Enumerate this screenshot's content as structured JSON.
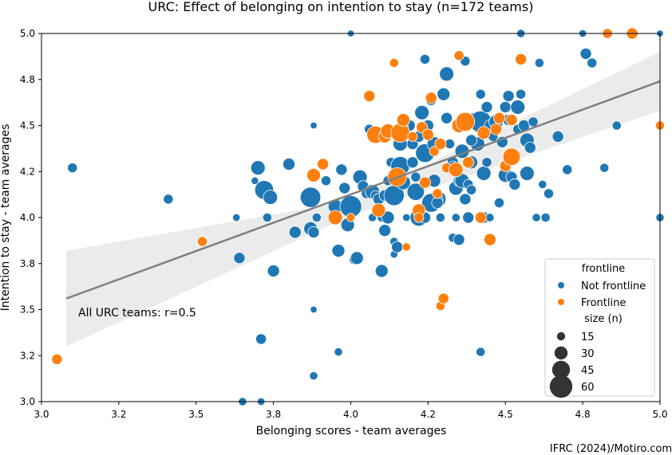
{
  "chart_data": {
    "type": "scatter",
    "title": "URC: Effect of belonging on intention to stay (n=172 teams)",
    "xlabel": "Belonging scores - team averages",
    "ylabel": "Intention to stay - team averages",
    "xlim": [
      3.0,
      5.0
    ],
    "ylim": [
      3.0,
      5.0
    ],
    "x_ticks": [
      "3.0",
      "3.2",
      "3.5",
      "3.8",
      "4.0",
      "4.2",
      "4.5",
      "4.8",
      "5.0"
    ],
    "y_ticks": [
      "3.0",
      "3.2",
      "3.5",
      "3.8",
      "4.0",
      "4.2",
      "4.5",
      "4.8",
      "5.0"
    ],
    "grid": false,
    "annotation": "All URC teams: r=0.5",
    "regression": {
      "x0": 3.08,
      "y0": 3.56,
      "x1": 5.0,
      "y1": 4.74,
      "ci_x": [
        3.08,
        4.0,
        5.0
      ],
      "ci_lo": [
        3.3,
        4.01,
        4.58
      ],
      "ci_hi": [
        3.82,
        4.09,
        4.9
      ]
    },
    "legend": {
      "placement": "lower-right",
      "hue_title": "frontline",
      "hue_entries": [
        {
          "label": "Not frontline",
          "color": "#1f77b4"
        },
        {
          "label": "Frontline",
          "color": "#ff7f0e"
        }
      ],
      "size_title": "size (n)",
      "size_entries": [
        "15",
        "30",
        "45",
        "60"
      ]
    },
    "series": [
      {
        "name": "Not frontline",
        "color": "#1f77b4",
        "points": [
          [
            3.1,
            4.27,
            8
          ],
          [
            3.41,
            4.1,
            8
          ],
          [
            3.63,
            4.0,
            5
          ],
          [
            3.64,
            3.78,
            10
          ],
          [
            3.65,
            3.0,
            6
          ],
          [
            3.69,
            4.2,
            5
          ],
          [
            3.7,
            4.27,
            14
          ],
          [
            3.71,
            3.0,
            5
          ],
          [
            3.71,
            3.34,
            9
          ],
          [
            3.72,
            4.15,
            20
          ],
          [
            3.73,
            4.0,
            7
          ],
          [
            3.74,
            4.11,
            14
          ],
          [
            3.75,
            3.71,
            11
          ],
          [
            3.8,
            4.29,
            11
          ],
          [
            3.82,
            3.92,
            11
          ],
          [
            3.86,
            4.11,
            16
          ],
          [
            3.87,
            4.11,
            22
          ],
          [
            3.87,
            3.94,
            13
          ],
          [
            3.88,
            3.92,
            10
          ],
          [
            3.89,
            4.0,
            7
          ],
          [
            3.88,
            4.5,
            4
          ],
          [
            3.88,
            3.5,
            4
          ],
          [
            3.88,
            3.14,
            6
          ],
          [
            3.92,
            4.2,
            8
          ],
          [
            3.95,
            4.06,
            14
          ],
          [
            3.96,
            3.82,
            12
          ],
          [
            3.96,
            3.27,
            6
          ],
          [
            3.97,
            4.26,
            10
          ],
          [
            3.98,
            4.16,
            10
          ],
          [
            3.99,
            3.96,
            13
          ],
          [
            4.0,
            5.0,
            4
          ],
          [
            4.0,
            4.06,
            24
          ],
          [
            4.01,
            3.77,
            7
          ],
          [
            4.02,
            3.78,
            12
          ],
          [
            4.03,
            4.22,
            14
          ],
          [
            4.04,
            4.17,
            10
          ],
          [
            4.05,
            4.13,
            8
          ],
          [
            4.07,
            4.14,
            14
          ],
          [
            4.07,
            4.0,
            6
          ],
          [
            4.08,
            4.12,
            8
          ],
          [
            4.09,
            4.1,
            10
          ],
          [
            4.1,
            4.0,
            7
          ],
          [
            4.1,
            3.71,
            12
          ],
          [
            4.11,
            3.93,
            11
          ],
          [
            4.12,
            4.0,
            12
          ],
          [
            4.11,
            4.12,
            10
          ],
          [
            4.12,
            4.2,
            8
          ],
          [
            4.13,
            4.3,
            8
          ],
          [
            4.14,
            3.87,
            6
          ],
          [
            4.14,
            3.8,
            5
          ],
          [
            4.15,
            3.84,
            10
          ],
          [
            4.14,
            4.12,
            22
          ],
          [
            4.16,
            4.28,
            20
          ],
          [
            4.16,
            4.4,
            14
          ],
          [
            4.17,
            4.19,
            14
          ],
          [
            4.18,
            4.0,
            5
          ],
          [
            4.19,
            4.5,
            10
          ],
          [
            4.2,
            4.4,
            10
          ],
          [
            4.21,
            4.22,
            8
          ],
          [
            4.21,
            4.14,
            18
          ],
          [
            4.22,
            4.0,
            18
          ],
          [
            4.22,
            4.03,
            10
          ],
          [
            4.22,
            4.44,
            10
          ],
          [
            4.23,
            4.57,
            14
          ],
          [
            4.24,
            4.0,
            10
          ],
          [
            4.24,
            4.35,
            20
          ],
          [
            4.25,
            4.5,
            10
          ],
          [
            4.26,
            4.64,
            10
          ],
          [
            4.27,
            4.4,
            14
          ],
          [
            4.27,
            4.2,
            12
          ],
          [
            4.28,
            4.1,
            18
          ],
          [
            4.28,
            4.1,
            10
          ],
          [
            4.29,
            4.0,
            7
          ],
          [
            4.3,
            4.67,
            12
          ],
          [
            4.31,
            4.78,
            14
          ],
          [
            4.31,
            4.54,
            10
          ],
          [
            4.32,
            4.4,
            8
          ],
          [
            4.33,
            4.3,
            10
          ],
          [
            4.33,
            4.28,
            8
          ],
          [
            4.34,
            4.0,
            6
          ],
          [
            4.33,
            3.89,
            7
          ],
          [
            4.34,
            4.16,
            14
          ],
          [
            4.35,
            3.88,
            10
          ],
          [
            4.35,
            4.2,
            10
          ],
          [
            4.36,
            4.36,
            14
          ],
          [
            4.36,
            4.2,
            14
          ],
          [
            4.37,
            4.85,
            8
          ],
          [
            4.37,
            4.1,
            10
          ],
          [
            4.38,
            4.0,
            10
          ],
          [
            4.38,
            4.18,
            8
          ],
          [
            4.39,
            4.3,
            12
          ],
          [
            4.39,
            4.15,
            8
          ],
          [
            4.4,
            4.54,
            10
          ],
          [
            4.41,
            4.4,
            14
          ],
          [
            4.42,
            4.52,
            24
          ],
          [
            4.42,
            4.67,
            8
          ],
          [
            4.43,
            4.24,
            14
          ],
          [
            4.43,
            4.0,
            10
          ],
          [
            4.44,
            4.3,
            8
          ],
          [
            4.44,
            4.6,
            10
          ],
          [
            4.45,
            4.5,
            10
          ],
          [
            4.45,
            4.0,
            6
          ],
          [
            4.46,
            4.44,
            8
          ],
          [
            4.47,
            4.52,
            14
          ],
          [
            4.48,
            4.08,
            8
          ],
          [
            4.49,
            4.41,
            10
          ],
          [
            4.5,
            4.6,
            10
          ],
          [
            4.5,
            4.23,
            14
          ],
          [
            4.51,
            4.66,
            10
          ],
          [
            4.51,
            4.53,
            10
          ],
          [
            4.52,
            4.22,
            10
          ],
          [
            4.53,
            4.18,
            10
          ],
          [
            4.54,
            4.6,
            14
          ],
          [
            4.54,
            4.48,
            8
          ],
          [
            4.55,
            4.67,
            8
          ],
          [
            4.56,
            4.5,
            10
          ],
          [
            4.57,
            4.42,
            14
          ],
          [
            4.57,
            4.24,
            14
          ],
          [
            4.58,
            4.38,
            10
          ],
          [
            4.59,
            4.52,
            8
          ],
          [
            4.6,
            4.0,
            6
          ],
          [
            4.61,
            4.84,
            7
          ],
          [
            4.62,
            4.18,
            6
          ],
          [
            4.63,
            4.0,
            7
          ],
          [
            4.64,
            4.13,
            8
          ],
          [
            4.67,
            4.44,
            10
          ],
          [
            4.7,
            4.26,
            8
          ],
          [
            4.75,
            5.0,
            5
          ],
          [
            4.76,
            4.89,
            10
          ],
          [
            4.78,
            4.84,
            8
          ],
          [
            4.82,
            4.27,
            7
          ],
          [
            4.86,
            4.5,
            7
          ],
          [
            4.92,
            5.0,
            4
          ],
          [
            5.0,
            4.0,
            6
          ],
          [
            5.0,
            5.0,
            4
          ],
          [
            4.55,
            5.0,
            6
          ],
          [
            4.42,
            3.27,
            7
          ],
          [
            4.24,
            4.86,
            8
          ],
          [
            4.26,
            4.08,
            20
          ],
          [
            4.39,
            4.42,
            10
          ],
          [
            4.2,
            4.3,
            10
          ],
          [
            4.06,
            4.48,
            8
          ],
          [
            4.17,
            4.49,
            8
          ],
          [
            4.28,
            4.08,
            10
          ],
          [
            4.37,
            4.52,
            14
          ]
        ]
      },
      {
        "name": "Frontline",
        "color": "#ff7f0e",
        "points": [
          [
            3.05,
            3.23,
            9
          ],
          [
            3.52,
            3.87,
            8
          ],
          [
            3.88,
            4.23,
            13
          ],
          [
            3.91,
            4.29,
            10
          ],
          [
            3.95,
            4.0,
            14
          ],
          [
            4.0,
            4.0,
            6
          ],
          [
            4.06,
            4.66,
            10
          ],
          [
            4.08,
            4.45,
            18
          ],
          [
            4.09,
            4.04,
            13
          ],
          [
            4.11,
            4.44,
            12
          ],
          [
            4.12,
            4.47,
            14
          ],
          [
            4.14,
            4.84,
            7
          ],
          [
            4.15,
            4.22,
            20
          ],
          [
            4.16,
            4.46,
            20
          ],
          [
            4.17,
            4.53,
            12
          ],
          [
            4.18,
            3.84,
            6
          ],
          [
            4.22,
            4.04,
            12
          ],
          [
            4.22,
            4.0,
            8
          ],
          [
            4.23,
            4.49,
            10
          ],
          [
            4.25,
            4.45,
            10
          ],
          [
            4.26,
            4.65,
            10
          ],
          [
            4.27,
            4.36,
            8
          ],
          [
            4.28,
            4.13,
            8
          ],
          [
            4.29,
            4.4,
            10
          ],
          [
            4.29,
            3.52,
            7
          ],
          [
            4.3,
            3.56,
            9
          ],
          [
            4.31,
            4.27,
            8
          ],
          [
            4.34,
            4.26,
            14
          ],
          [
            4.35,
            4.88,
            8
          ],
          [
            4.35,
            4.5,
            14
          ],
          [
            4.37,
            4.52,
            20
          ],
          [
            4.38,
            4.3,
            10
          ],
          [
            4.42,
            4.0,
            10
          ],
          [
            4.43,
            4.46,
            12
          ],
          [
            4.45,
            3.88,
            11
          ],
          [
            4.47,
            4.48,
            10
          ],
          [
            4.48,
            4.54,
            10
          ],
          [
            4.5,
            4.28,
            10
          ],
          [
            4.52,
            4.33,
            18
          ],
          [
            4.55,
            4.86,
            10
          ],
          [
            4.52,
            4.53,
            10
          ],
          [
            4.83,
            5.0,
            8
          ],
          [
            4.91,
            5.0,
            10
          ],
          [
            5.0,
            4.5,
            7
          ],
          [
            4.24,
            4.19,
            10
          ],
          [
            4.2,
            4.44,
            8
          ]
        ]
      }
    ]
  },
  "caption": "IFRC (2024)/Motiro.com"
}
